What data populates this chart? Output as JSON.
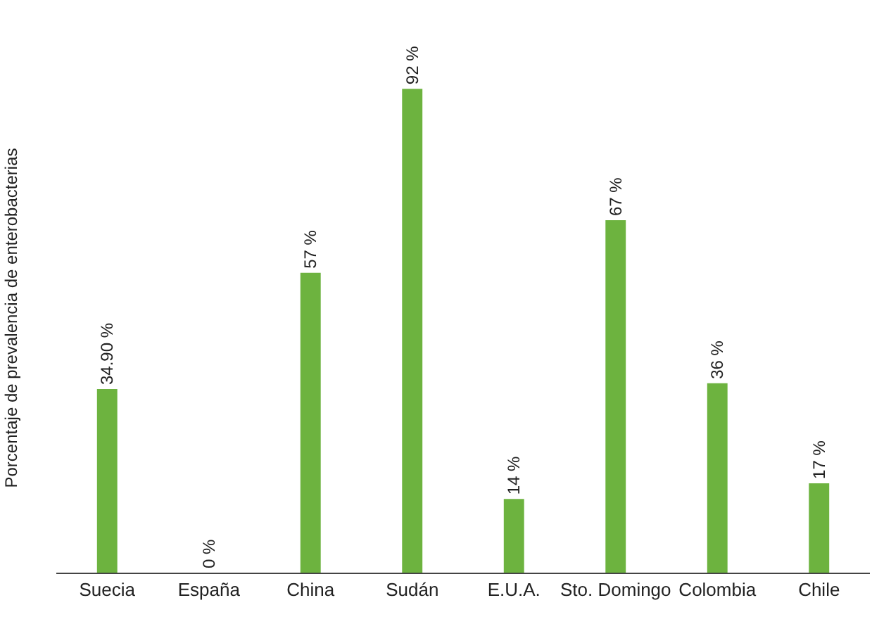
{
  "chart_data": {
    "type": "bar",
    "ylabel": "Porcentaje de prevalencia de enterobacterias",
    "categories": [
      "Suecia",
      "España",
      "China",
      "Sudán",
      "E.U.A.",
      "Sto. Domingo",
      "Colombia",
      "Chile"
    ],
    "values": [
      34.9,
      0,
      57,
      92,
      14,
      67,
      36,
      17
    ],
    "value_labels": [
      "34.90 %",
      "0 %",
      "57 %",
      "92 %",
      "14 %",
      "67 %",
      "36 %",
      "17 %"
    ],
    "color": "#6db33f",
    "legend": false
  }
}
